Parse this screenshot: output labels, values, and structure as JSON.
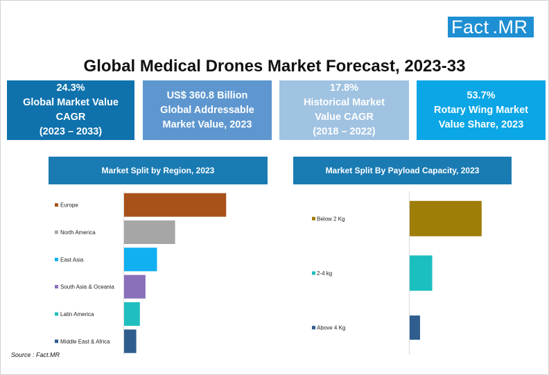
{
  "logo": {
    "part1": "Fact",
    "part2": ".MR"
  },
  "title": "Global Medical Drones Market Forecast, 2023-33",
  "kpis": [
    {
      "lines": [
        "24.3%",
        "Global Market Value",
        "CAGR",
        "(2023 – 2033)"
      ],
      "color": "#0f72ad"
    },
    {
      "lines": [
        "US$ 360.8 Billion",
        "Global Addressable",
        "Market Value, 2023"
      ],
      "color": "#5e97cf"
    },
    {
      "lines": [
        "17.8%",
        "Historical Market",
        "Value CAGR",
        "(2018 – 2022)"
      ],
      "color": "#a1c3e2"
    },
    {
      "lines": [
        "53.7%",
        "Rotary Wing Market",
        "Value Share, 2023"
      ],
      "color": "#0aa6e6"
    }
  ],
  "chart_data": [
    {
      "type": "bar",
      "orientation": "horizontal",
      "title": "Market Split by Region, 2023",
      "categories": [
        "Europe",
        "North America",
        "East Asia",
        "South Asia & Oceania",
        "Latin America",
        "Middle East & Africa"
      ],
      "values": [
        31,
        15.5,
        10,
        6.5,
        4.8,
        3.7
      ],
      "colors": [
        "#a9511b",
        "#a6a6a6",
        "#11b0f0",
        "#8a6fbb",
        "#1fbfbf",
        "#2f5e8e"
      ],
      "legend": "left"
    },
    {
      "type": "bar",
      "orientation": "horizontal",
      "title": "Market Split By Payload Capacity, 2023",
      "categories": [
        "Below 2 Kg",
        "2-4 kg",
        "Above 4 Kg"
      ],
      "values": [
        59,
        18.5,
        8.5
      ],
      "colors": [
        "#9e7d09",
        "#1bbfbe",
        "#2f5e8e"
      ],
      "legend": "left"
    }
  ],
  "source": "Source : Fact.MR"
}
